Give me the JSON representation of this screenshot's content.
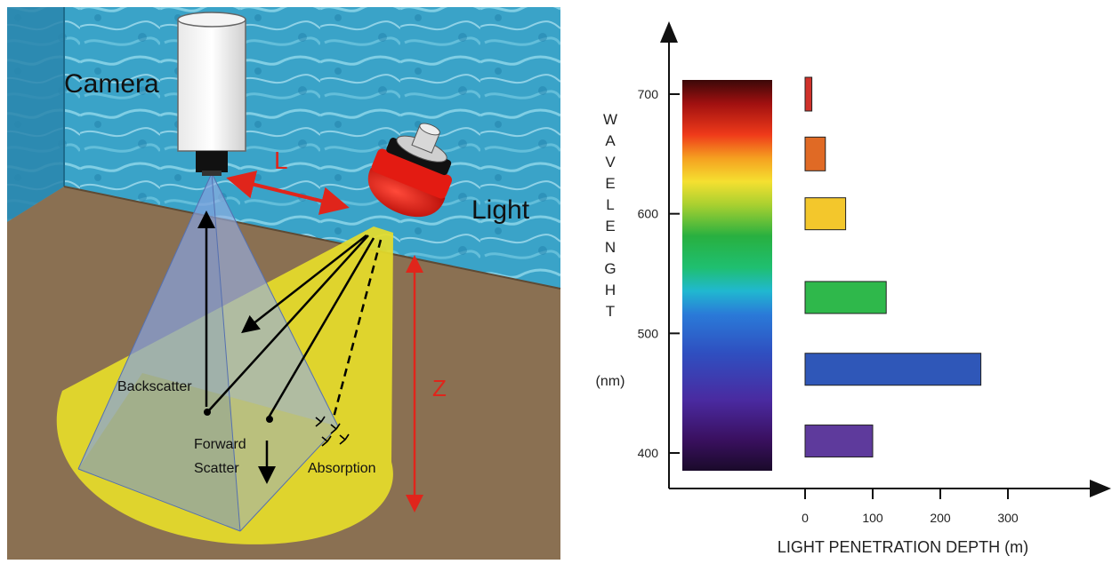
{
  "scene": {
    "camera_label": "Camera",
    "light_label": "Light",
    "distance_label": "L",
    "depth_label": "Z",
    "backscatter_label": "Backscatter",
    "forward_scatter_line1": "Forward",
    "forward_scatter_line2": "Scatter",
    "absorption_label": "Absorption",
    "colors": {
      "water": "#3aa3c8",
      "floor": "#8a7052",
      "light_cone": "#e6dc2a",
      "camera_cone": "#6f8fd8",
      "lamp_head": "#e31b12",
      "annotation": "#e0251b"
    }
  },
  "chart_data": {
    "type": "bar",
    "orientation": "horizontal",
    "ylabel_letters": [
      "W",
      "A",
      "V",
      "E",
      "L",
      "E",
      "N",
      "G",
      "H",
      "T"
    ],
    "yunit": "(nm)",
    "xlabel": "LIGHT PENETRATION DEPTH (m)",
    "xticks": [
      0,
      100,
      200,
      300
    ],
    "yticks": [
      400,
      500,
      600,
      700
    ],
    "xlim": [
      0,
      300
    ],
    "ylim": [
      400,
      700
    ],
    "spectrum_gradient": "visible spectrum 380–720 nm",
    "bars": [
      {
        "wavelength": 700,
        "depth": 10,
        "color": "#d0312a"
      },
      {
        "wavelength": 650,
        "depth": 30,
        "color": "#e06a25"
      },
      {
        "wavelength": 600,
        "depth": 60,
        "color": "#f3c72c"
      },
      {
        "wavelength": 530,
        "depth": 120,
        "color": "#2fb84b"
      },
      {
        "wavelength": 470,
        "depth": 260,
        "color": "#2f57b8"
      },
      {
        "wavelength": 410,
        "depth": 100,
        "color": "#5e3a9c"
      }
    ]
  }
}
